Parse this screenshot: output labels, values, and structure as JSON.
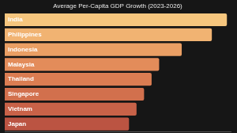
{
  "chart_data": {
    "type": "bar",
    "orientation": "horizontal",
    "title": "Average Per-Capita GDP Growth (2023-2026)",
    "categories": [
      "India",
      "Philippines",
      "Indonesia",
      "Malaysia",
      "Thailand",
      "Singapore",
      "Vietnam",
      "Japan"
    ],
    "values": [
      5.9,
      5.5,
      4.7,
      4.1,
      3.9,
      3.7,
      3.5,
      3.3
    ],
    "colors": [
      "#f6c67e",
      "#f1b372",
      "#ea9f64",
      "#e38c5a",
      "#db7d52",
      "#d2704d",
      "#c86248",
      "#bb5442"
    ],
    "xlim": [
      0,
      6
    ],
    "grid": false,
    "tick_labels": false
  }
}
